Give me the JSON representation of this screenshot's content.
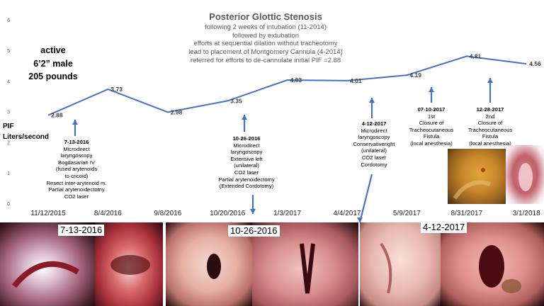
{
  "chart_data": {
    "type": "line",
    "title": "Posterior Glottic Stenosis",
    "subtitle_lines": [
      "following 2 weeks of intubation (11-2014)",
      "followed by extubation",
      "efforts at sequential dilation without tracheotomy",
      "lead to placement of Montgomery Cannula (4-2014)",
      "referred for efforts to de-cannulate initial PIF =2.88"
    ],
    "ylabel_lines": [
      "PIF",
      "Liters/second"
    ],
    "ylim": [
      0,
      6
    ],
    "yticks": [
      "0",
      "1",
      "2",
      "3",
      "4",
      "5",
      "6"
    ],
    "grid": false,
    "series_color": "#4472c4",
    "x_tick_labels": [
      "11/12/2015",
      "8/4/2016",
      "9/8/2016",
      "10/20/2016",
      "1/3/2017",
      "4/4/2017",
      "5/9/2017",
      "8/31/2017",
      "3/1/2018"
    ],
    "points": [
      {
        "x": "11/12/2015",
        "y": 2.88,
        "label": "2.88"
      },
      {
        "x": "8/4/2016",
        "y": 3.73,
        "label": "3.73"
      },
      {
        "x": "9/8/2016",
        "y": 2.98,
        "label": "2.98"
      },
      {
        "x": "10/20/2016",
        "y": 3.35,
        "label": "3.35"
      },
      {
        "x": "1/3/2017",
        "y": 4.03,
        "label": "4.03"
      },
      {
        "x": "4/4/2017",
        "y": 4.01,
        "label": "4.01"
      },
      {
        "x": "5/9/2017",
        "y": 4.19,
        "label": "4.19"
      },
      {
        "x": "8/31/2017",
        "y": 4.81,
        "label": "4.81"
      },
      {
        "x": "3/1/2018",
        "y": 4.56,
        "label": "4.56"
      }
    ]
  },
  "patient_lines": [
    "active",
    "6’2” male",
    "205 pounds"
  ],
  "annotations": [
    {
      "date": "7-13-2016",
      "lines": [
        "Microdirect",
        "laryngoscopy",
        "Bogdasarian IV",
        "(fused arytenoids",
        "to cricoid)",
        "Resect inter-arytenoid m.",
        "Partial arytenoidectomy",
        "CO2 laser"
      ]
    },
    {
      "date": "10-26-2016",
      "lines": [
        "Microdirect",
        "laryngoscopy",
        "Extensive left",
        "(unilateral)",
        "CO2 laser",
        "Partial arytenoidectomy",
        "(Extended Cordotomy)"
      ]
    },
    {
      "date": "4-12-2017",
      "lines": [
        "Microdirect",
        "laryngoscopy",
        "Conservativeright",
        "(unilateral)",
        "CO2 laser",
        "Cordotomy"
      ]
    },
    {
      "date": "07-10-2017",
      "lines": [
        "1st",
        "Closure of",
        "Tracheocutaneous",
        "Fistula",
        "(local anesthesia)"
      ]
    },
    {
      "date": "12-28-2017",
      "lines": [
        "2nd",
        "Closure of",
        "Tracheocutaneous",
        "Fistula",
        "(local anesthesia)"
      ]
    }
  ],
  "photo_labels": [
    "7-13-2016",
    "10-26-2016",
    "4-12-2017"
  ]
}
